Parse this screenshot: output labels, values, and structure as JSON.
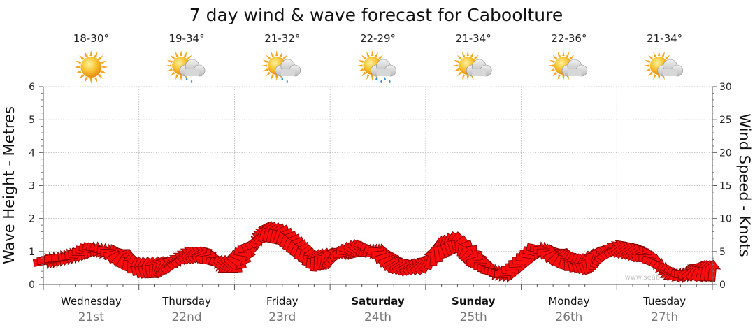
{
  "chart_data": {
    "type": "line",
    "title": "7 day wind & wave forecast for Caboolture",
    "ylabel_left": "Wave Height - Metres",
    "ylabel_right": "Wind Speed - Knots",
    "ylim_left": [
      0,
      6
    ],
    "ylim_right": [
      0,
      30
    ],
    "yticks_left": [
      "0",
      "1",
      "2",
      "3",
      "4",
      "5",
      "6"
    ],
    "yticks_right": [
      "0",
      "5",
      "10",
      "15",
      "20",
      "25",
      "30"
    ],
    "grid": true,
    "watermark": "www.seabreeze.com.au",
    "days": [
      {
        "name": "Wednesday",
        "date": "21st",
        "temp": "18-30°",
        "icon": "sunny-icon",
        "bold": false
      },
      {
        "name": "Thursday",
        "date": "22nd",
        "temp": "19-34°",
        "icon": "partly-cloudy-showers-icon",
        "bold": false
      },
      {
        "name": "Friday",
        "date": "23rd",
        "temp": "21-32°",
        "icon": "partly-cloudy-showers-icon",
        "bold": false
      },
      {
        "name": "Saturday",
        "date": "24th",
        "temp": "22-29°",
        "icon": "partly-cloudy-rain-icon",
        "bold": true
      },
      {
        "name": "Sunday",
        "date": "25th",
        "temp": "21-34°",
        "icon": "partly-cloudy-icon",
        "bold": true
      },
      {
        "name": "Monday",
        "date": "26th",
        "temp": "22-36°",
        "icon": "partly-cloudy-icon",
        "bold": false
      },
      {
        "name": "Tuesday",
        "date": "27th",
        "temp": "21-34°",
        "icon": "partly-cloudy-icon",
        "bold": false
      }
    ],
    "series": [
      {
        "name": "Wind Speed",
        "unit": "knots",
        "style": "wind-direction-arrows",
        "x_days": [
          0.0,
          0.17,
          0.33,
          0.5,
          0.67,
          0.83,
          1.0,
          1.17,
          1.33,
          1.5,
          1.67,
          1.83,
          2.0,
          2.17,
          2.33,
          2.5,
          2.67,
          2.83,
          3.0,
          3.17,
          3.33,
          3.5,
          3.67,
          3.83,
          4.0,
          4.17,
          4.33,
          4.5,
          4.67,
          4.83,
          5.0,
          5.17,
          5.33,
          5.5,
          5.67,
          5.83,
          6.0,
          6.17,
          6.33,
          6.5,
          6.67,
          6.83,
          7.0
        ],
        "values": [
          3.5,
          4,
          4.5,
          5.5,
          5,
          4,
          2.5,
          2.5,
          3,
          4.5,
          4.5,
          3,
          3,
          6,
          8,
          7.5,
          5.5,
          3.5,
          4,
          5,
          5.5,
          5,
          3,
          2.5,
          3,
          5.5,
          6.5,
          4,
          2,
          1.5,
          3.5,
          5.5,
          4.5,
          3.5,
          3,
          4.5,
          5.5,
          5,
          4,
          2,
          1.5,
          2,
          2
        ]
      }
    ]
  }
}
